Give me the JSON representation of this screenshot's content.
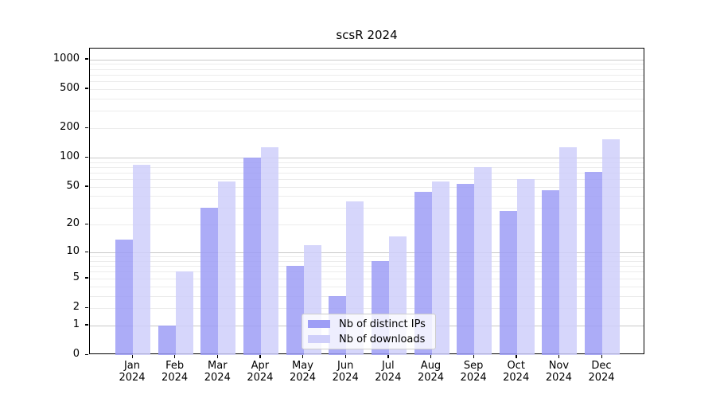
{
  "chart_data": {
    "type": "bar",
    "title": "scsR 2024",
    "categories": [
      "Jan 2024",
      "Feb 2024",
      "Mar 2024",
      "Apr 2024",
      "May 2024",
      "Jun 2024",
      "Jul 2024",
      "Aug 2024",
      "Sep 2024",
      "Oct 2024",
      "Nov 2024",
      "Dec 2024"
    ],
    "series": [
      {
        "name": "Nb of distinct IPs",
        "color": "#9e9ef6",
        "values": [
          14,
          1,
          30,
          100,
          7,
          3,
          8,
          44,
          54,
          28,
          46,
          71
        ]
      },
      {
        "name": "Nb of downloads",
        "color": "#cfcffa",
        "values": [
          85,
          6,
          57,
          128,
          12,
          35,
          15,
          57,
          80,
          60,
          127,
          155
        ]
      }
    ],
    "xlabel": "",
    "ylabel": "",
    "yscale": "log10(1+x)",
    "yticks": [
      0,
      1,
      2,
      5,
      10,
      20,
      50,
      100,
      200,
      500,
      1000
    ],
    "ylim": [
      0,
      1290
    ],
    "grid": "horizontal major and minor gridlines",
    "legend_position": "lower center"
  }
}
